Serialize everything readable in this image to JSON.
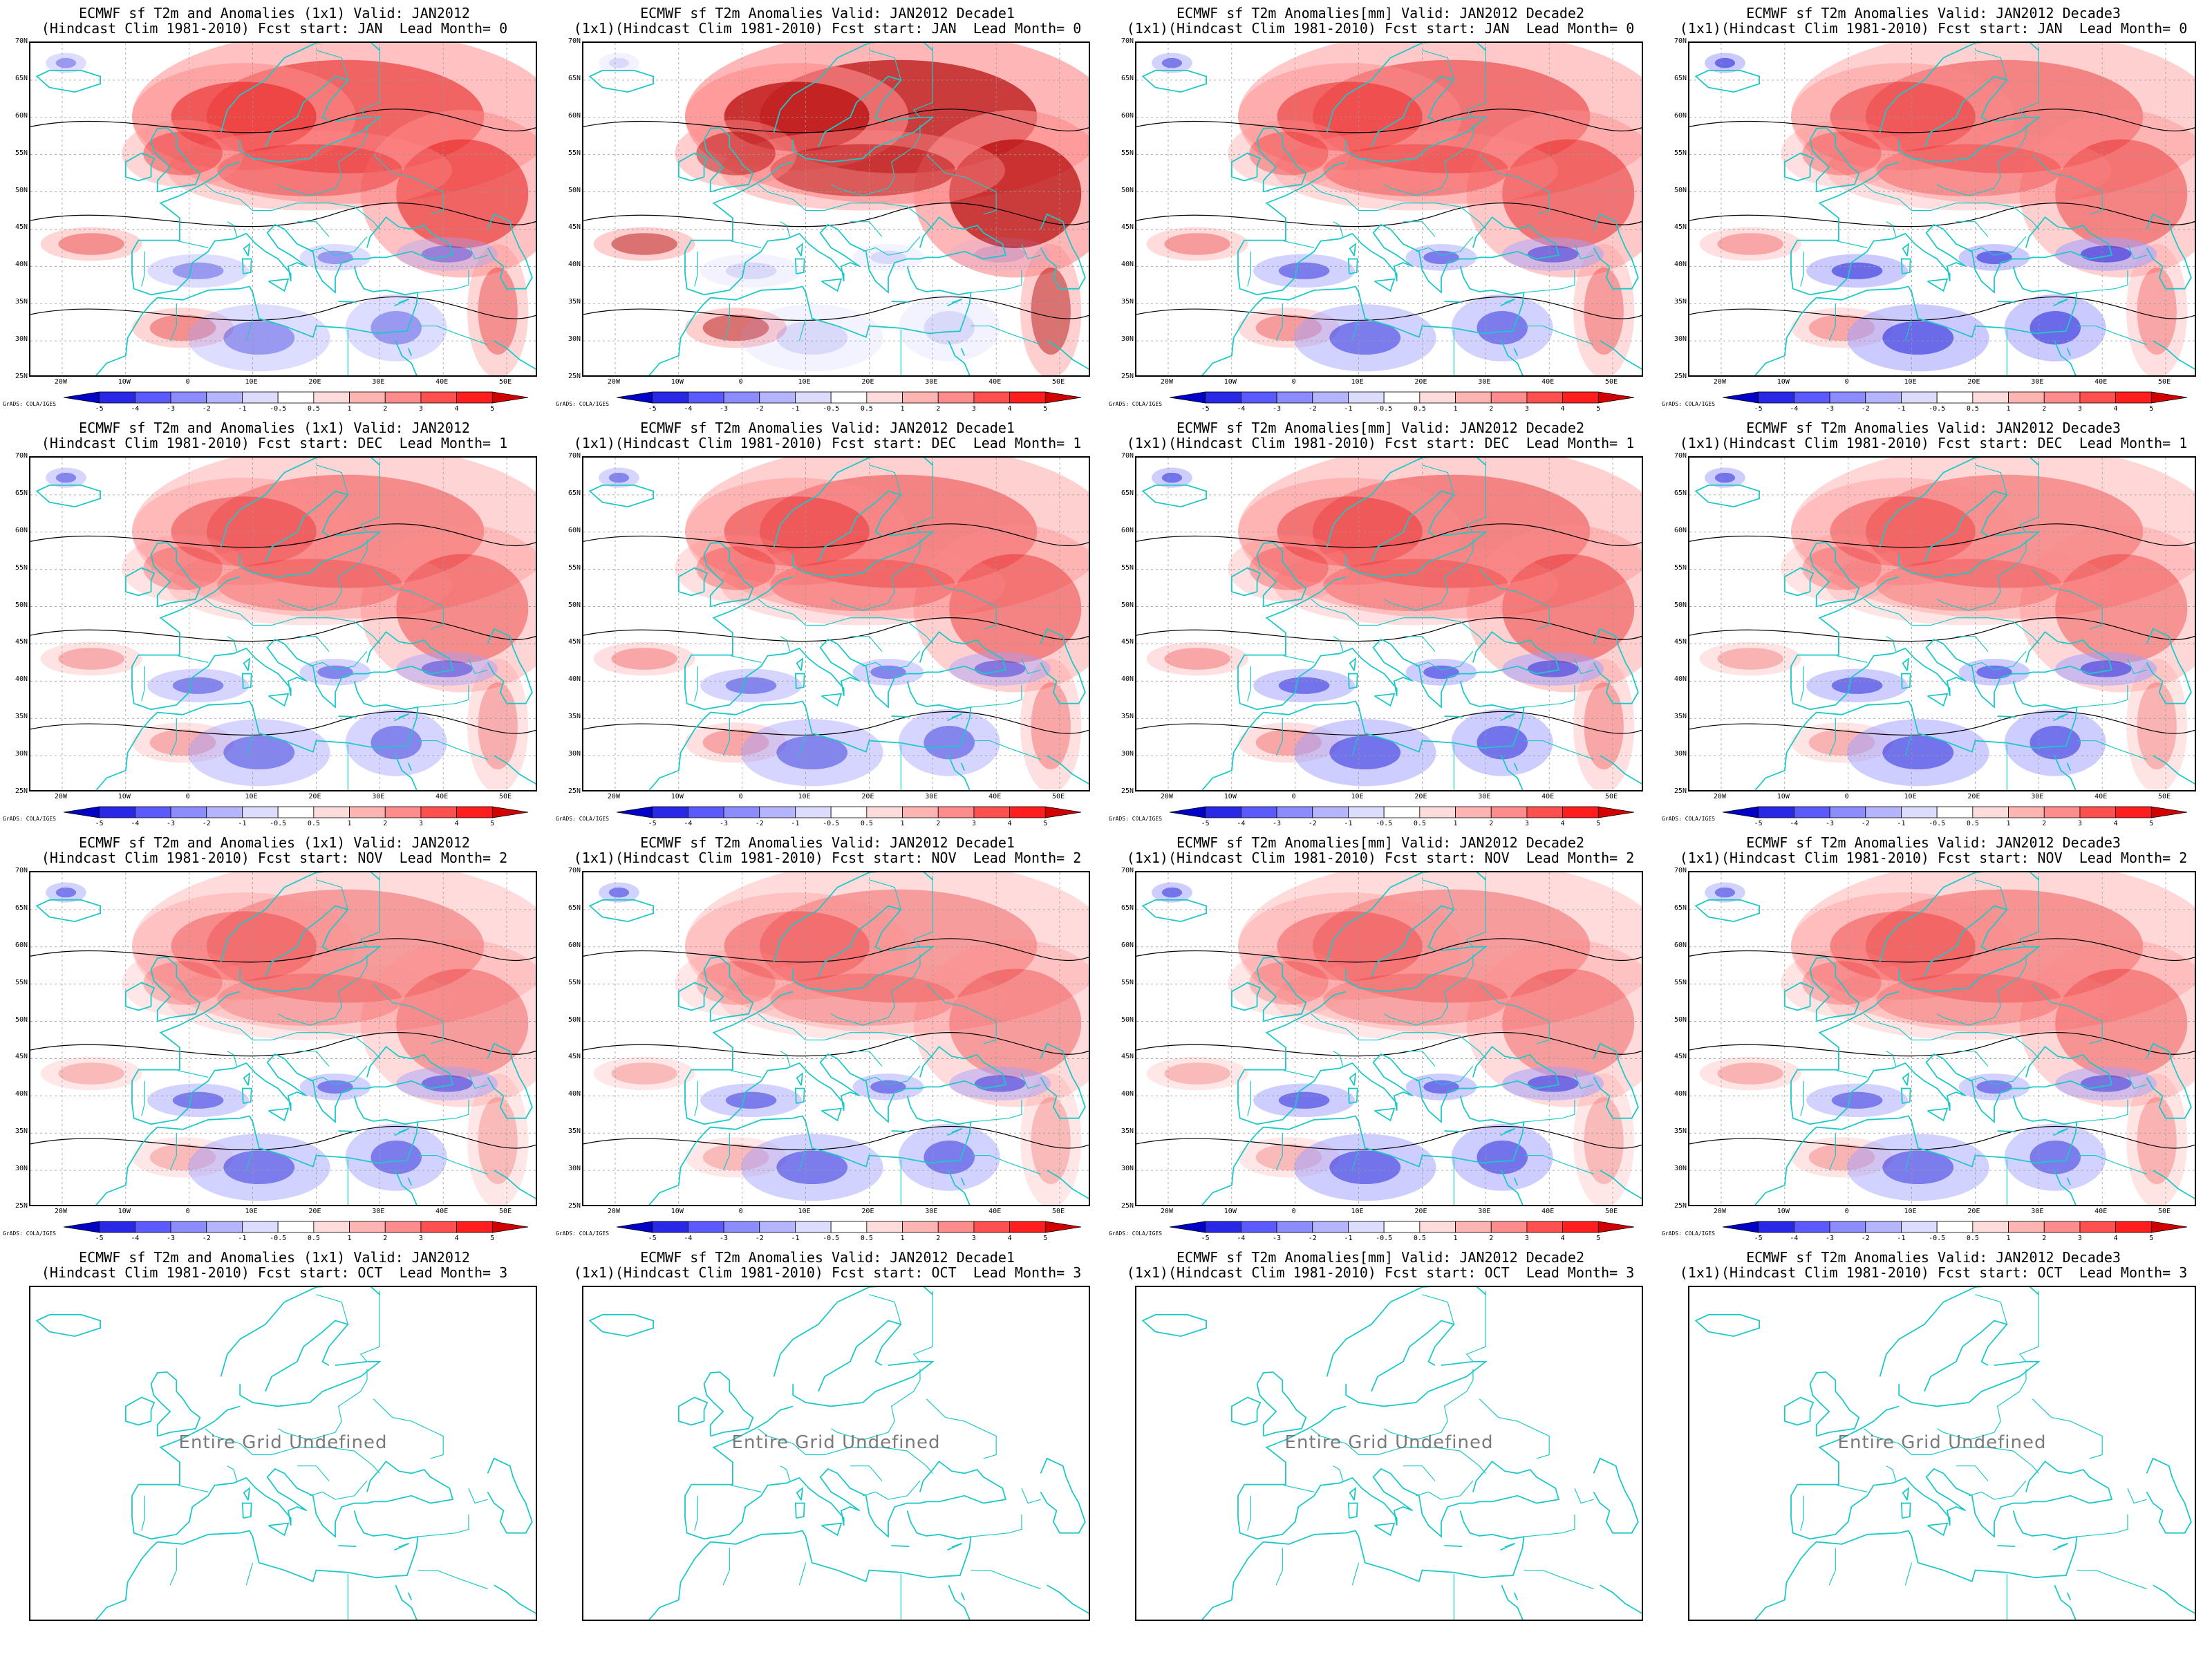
{
  "panels": [
    {
      "line1": "ECMWF sf T2m and Anomalies (1x1) Valid: JAN2012",
      "line2": "(Hindcast Clim 1981-2010) Fcst start: JAN  Lead Month= 0",
      "defined": true,
      "intensity": 0.85,
      "cold": 0.45
    },
    {
      "line1": "ECMWF sf T2m Anomalies Valid: JAN2012 Decade1",
      "line2": "(1x1)(Hindcast Clim 1981-2010) Fcst start: JAN  Lead Month= 0",
      "defined": true,
      "intensity": 1.0,
      "cold": 0.15
    },
    {
      "line1": "ECMWF sf T2m Anomalies[mm] Valid: JAN2012 Decade2",
      "line2": "(1x1)(Hindcast Clim 1981-2010) Fcst start: JAN  Lead Month= 0",
      "defined": true,
      "intensity": 0.75,
      "cold": 0.6
    },
    {
      "line1": "ECMWF sf T2m Anomalies Valid: JAN2012 Decade3",
      "line2": "(1x1)(Hindcast Clim 1981-2010) Fcst start: JAN  Lead Month= 0",
      "defined": true,
      "intensity": 0.65,
      "cold": 0.7
    },
    {
      "line1": "ECMWF sf T2m and Anomalies (1x1) Valid: JAN2012",
      "line2": "(Hindcast Clim 1981-2010) Fcst start: DEC  Lead Month= 1",
      "defined": true,
      "intensity": 0.6,
      "cold": 0.55
    },
    {
      "line1": "ECMWF sf T2m Anomalies Valid: JAN2012 Decade1",
      "line2": "(1x1)(Hindcast Clim 1981-2010) Fcst start: DEC  Lead Month= 1",
      "defined": true,
      "intensity": 0.65,
      "cold": 0.55
    },
    {
      "line1": "ECMWF sf T2m Anomalies[mm] Valid: JAN2012 Decade2",
      "line2": "(1x1)(Hindcast Clim 1981-2010) Fcst start: DEC  Lead Month= 1",
      "defined": true,
      "intensity": 0.65,
      "cold": 0.65
    },
    {
      "line1": "ECMWF sf T2m Anomalies Valid: JAN2012 Decade3",
      "line2": "(1x1)(Hindcast Clim 1981-2010) Fcst start: DEC  Lead Month= 1",
      "defined": true,
      "intensity": 0.55,
      "cold": 0.65
    },
    {
      "line1": "ECMWF sf T2m and Anomalies (1x1) Valid: JAN2012",
      "line2": "(Hindcast Clim 1981-2010) Fcst start: NOV  Lead Month= 2",
      "defined": true,
      "intensity": 0.5,
      "cold": 0.6
    },
    {
      "line1": "ECMWF sf T2m Anomalies Valid: JAN2012 Decade1",
      "line2": "(1x1)(Hindcast Clim 1981-2010) Fcst start: NOV  Lead Month= 2",
      "defined": true,
      "intensity": 0.5,
      "cold": 0.6
    },
    {
      "line1": "ECMWF sf T2m Anomalies[mm] Valid: JAN2012 Decade2",
      "line2": "(1x1)(Hindcast Clim 1981-2010) Fcst start: NOV  Lead Month= 2",
      "defined": true,
      "intensity": 0.5,
      "cold": 0.65
    },
    {
      "line1": "ECMWF sf T2m Anomalies Valid: JAN2012 Decade3",
      "line2": "(1x1)(Hindcast Clim 1981-2010) Fcst start: NOV  Lead Month= 2",
      "defined": true,
      "intensity": 0.55,
      "cold": 0.6
    },
    {
      "line1": "ECMWF sf T2m and Anomalies (1x1) Valid: JAN2012",
      "line2": "(Hindcast Clim 1981-2010) Fcst start: OCT  Lead Month= 3",
      "defined": false,
      "undefined_text": "Entire Grid Undefined"
    },
    {
      "line1": "ECMWF sf T2m Anomalies Valid: JAN2012 Decade1",
      "line2": "(1x1)(Hindcast Clim 1981-2010) Fcst start: OCT  Lead Month= 3",
      "defined": false,
      "undefined_text": "Entire Grid Undefined"
    },
    {
      "line1": "ECMWF sf T2m Anomalies[mm] Valid: JAN2012 Decade2",
      "line2": "(1x1)(Hindcast Clim 1981-2010) Fcst start: OCT  Lead Month= 3",
      "defined": false,
      "undefined_text": "Entire Grid Undefined"
    },
    {
      "line1": "ECMWF sf T2m Anomalies Valid: JAN2012 Decade3",
      "line2": "(1x1)(Hindcast Clim 1981-2010) Fcst start: OCT  Lead Month= 3",
      "defined": false,
      "undefined_text": "Entire Grid Undefined"
    }
  ],
  "lat_labels": [
    "70N",
    "65N",
    "60N",
    "55N",
    "50N",
    "45N",
    "40N",
    "35N",
    "30N",
    "25N"
  ],
  "lon_labels": [
    "20W",
    "10W",
    "0",
    "10E",
    "20E",
    "30E",
    "40E",
    "50E"
  ],
  "colorbar": {
    "labels": [
      "-5",
      "-4",
      "-3",
      "-2",
      "-1",
      "-0.5",
      "0.5",
      "1",
      "2",
      "3",
      "4",
      "5"
    ],
    "colors": [
      "#0000c8",
      "#2828e6",
      "#5a5aff",
      "#8c8cff",
      "#b4b4ff",
      "#dcdcff",
      "#ffffff",
      "#ffdcdc",
      "#ffb4b4",
      "#ff8c8c",
      "#ff5050",
      "#ff1e1e",
      "#d20000"
    ]
  },
  "credit": "GrADS: COLA/IGES",
  "colors": {
    "coast": "#1ec8c8",
    "warm": "#e01010",
    "cold": "#1010d0",
    "contour": "#000000"
  }
}
